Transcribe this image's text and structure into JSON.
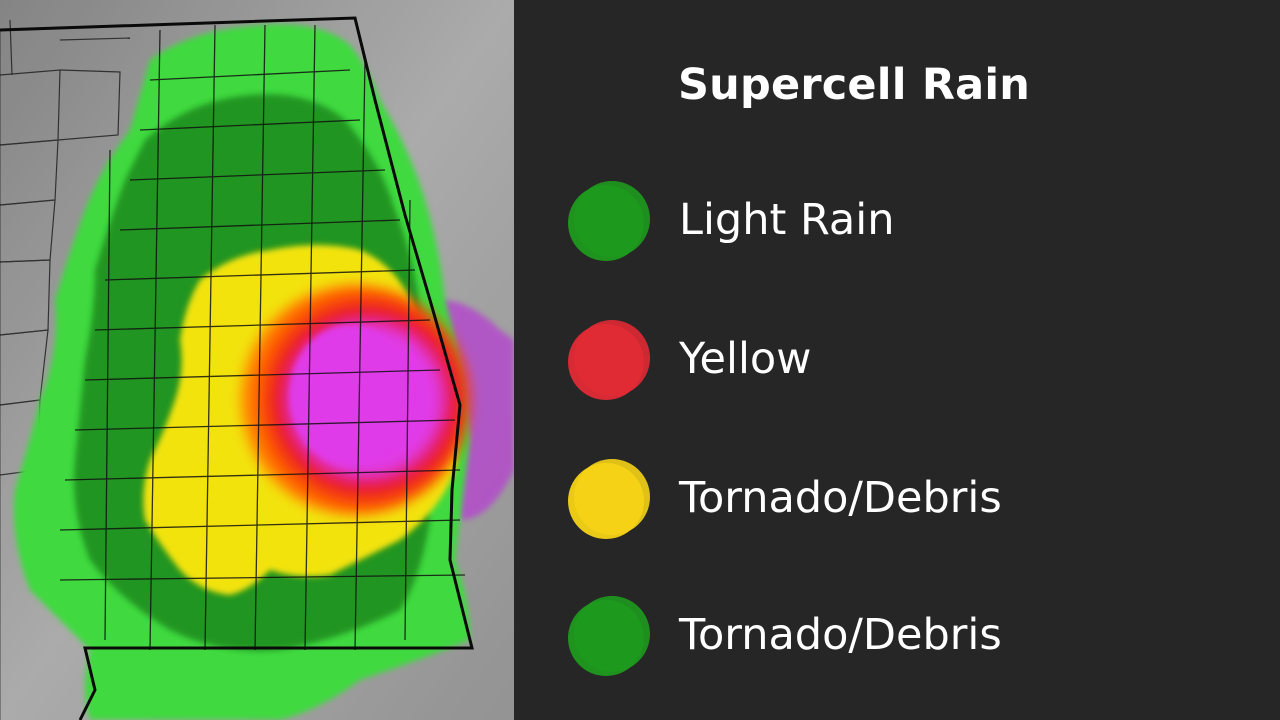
{
  "map": {
    "colors": {
      "background": "#8a8a8a",
      "light_rain": "#3fd93f",
      "moderate": "#1d8a1d",
      "heavy": "#f2e30c",
      "intense": "#ff8a00",
      "severe": "#e8141e",
      "extreme": "#e03be8",
      "borders": "#111111"
    }
  },
  "legend": {
    "title": "Supercell Rain",
    "items": [
      {
        "label": "Light Rain",
        "color": "#1e9a1e",
        "swatch_icon": "green-circle-icon"
      },
      {
        "label": "Yellow",
        "color": "#e02a35",
        "swatch_icon": "red-circle-icon"
      },
      {
        "label": "Tornado/Debris",
        "color": "#f5d316",
        "swatch_icon": "yellow-circle-icon"
      },
      {
        "label": "Tornado/Debris",
        "color": "#1e9a1e",
        "swatch_icon": "green-circle-icon"
      }
    ]
  }
}
